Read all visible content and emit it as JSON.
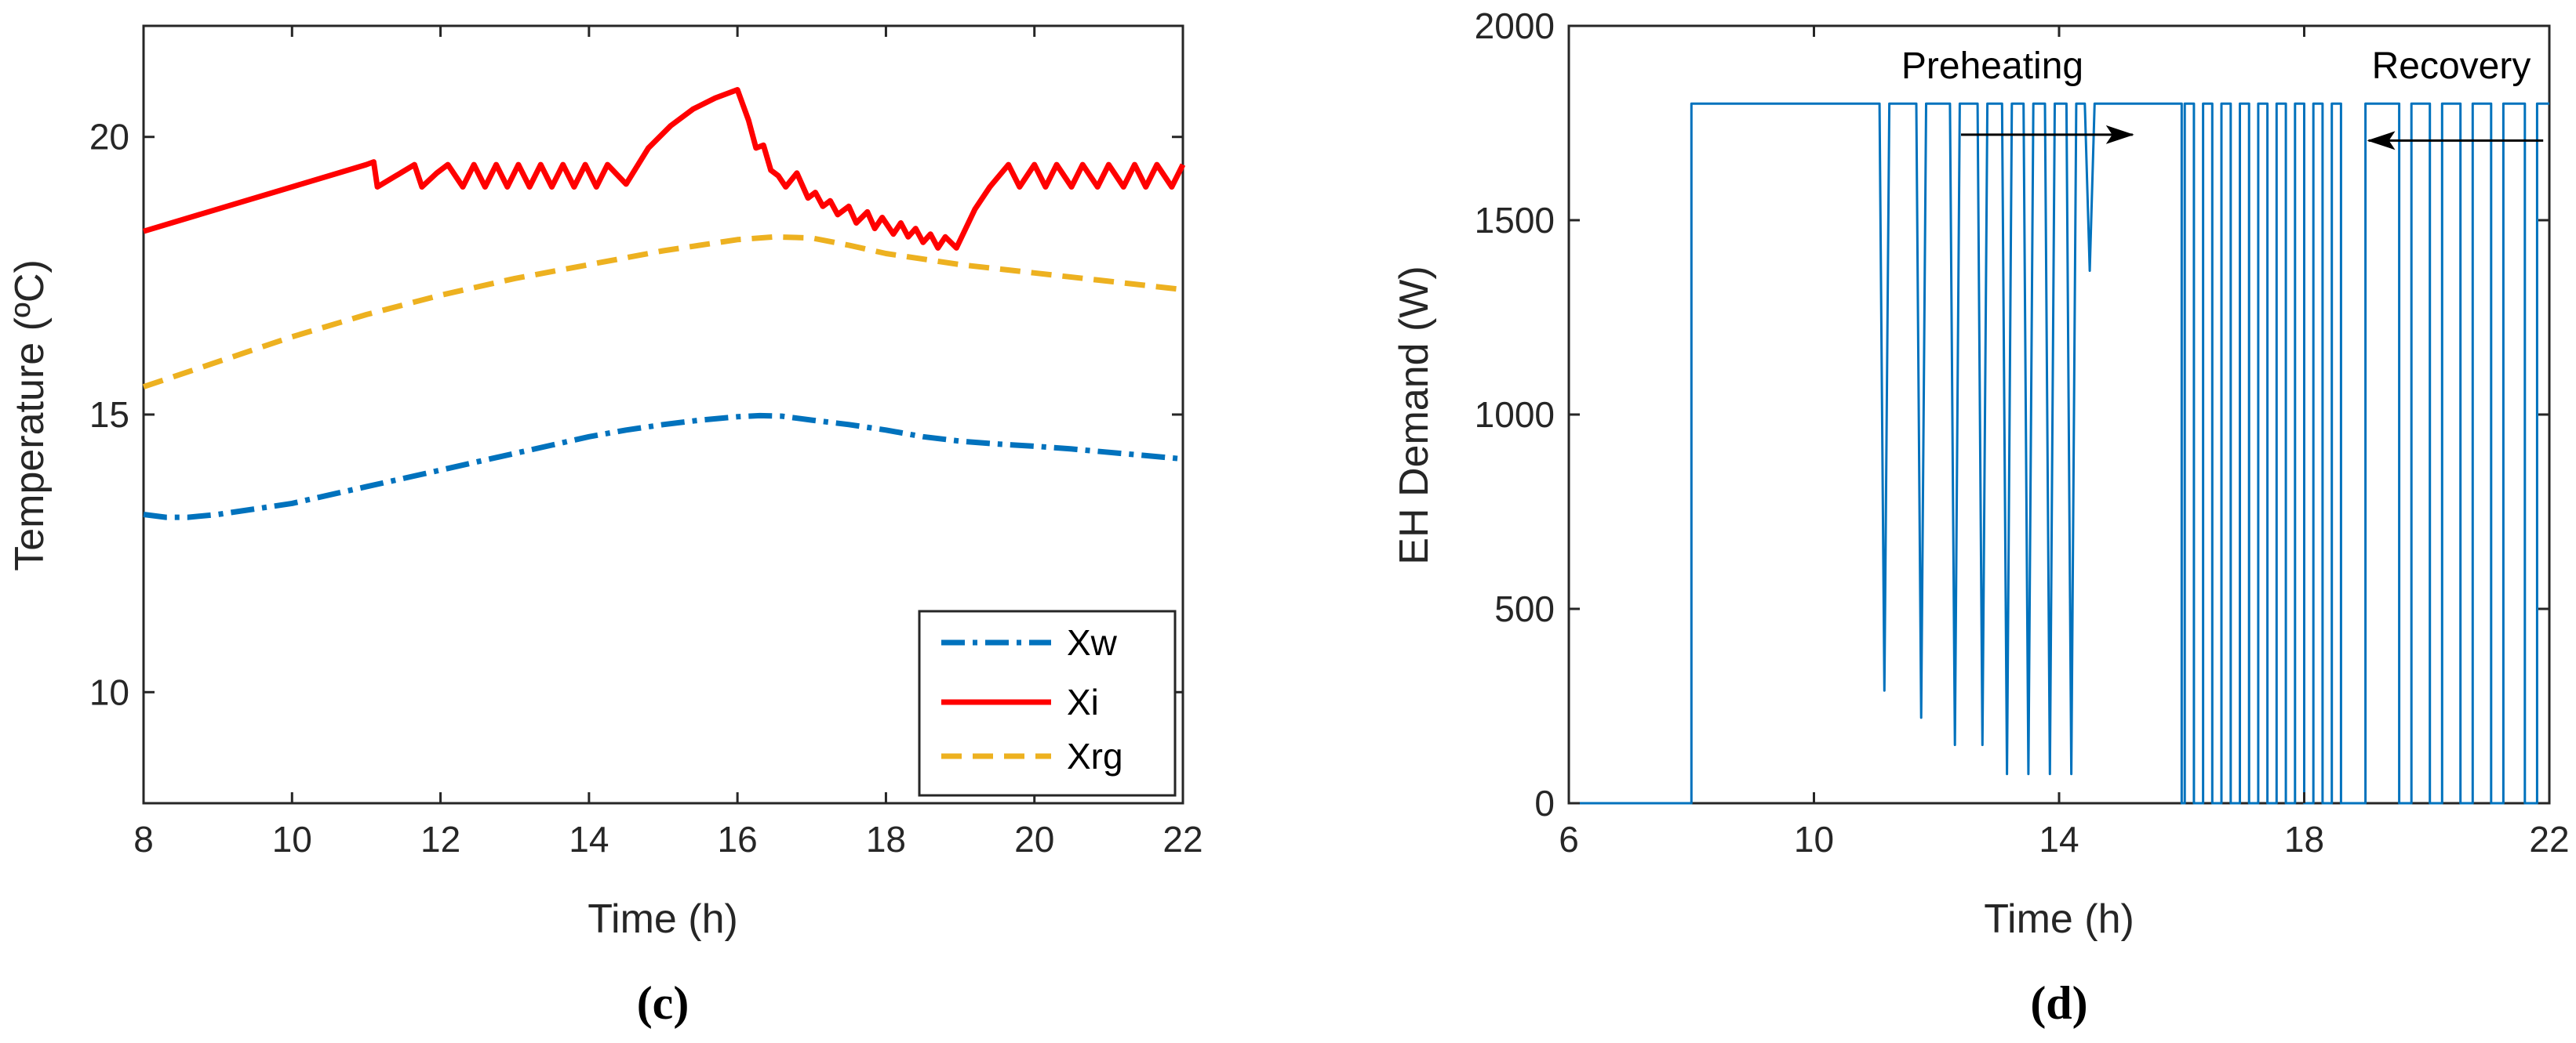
{
  "chart_data": [
    {
      "id": "c",
      "type": "line",
      "caption": "(c)",
      "xlabel": "Time (h)",
      "ylabel": "Temperature (ºC)",
      "xlim": [
        8,
        22
      ],
      "ylim": [
        8,
        22
      ],
      "xticks": [
        8,
        10,
        12,
        14,
        16,
        18,
        20,
        22
      ],
      "yticks": [
        10,
        15,
        20
      ],
      "grid": false,
      "legend_position": "bottom-right",
      "series": [
        {
          "name": "Xw",
          "style": "dash-dot",
          "color": "#0072BD",
          "x": [
            8,
            8.3,
            8.6,
            9,
            9.5,
            10,
            10.5,
            11,
            11.5,
            12,
            12.5,
            13,
            13.5,
            14,
            14.5,
            15,
            15.5,
            16,
            16.3,
            16.6,
            17,
            17.5,
            18,
            18.5,
            19,
            19.5,
            20,
            20.5,
            21,
            21.5,
            22
          ],
          "values": [
            13.2,
            13.15,
            13.15,
            13.2,
            13.3,
            13.4,
            13.55,
            13.7,
            13.85,
            14.0,
            14.15,
            14.3,
            14.45,
            14.6,
            14.72,
            14.82,
            14.9,
            14.96,
            14.98,
            14.97,
            14.9,
            14.82,
            14.72,
            14.6,
            14.52,
            14.47,
            14.43,
            14.38,
            14.32,
            14.26,
            14.2
          ]
        },
        {
          "name": "Xi",
          "style": "solid",
          "color": "#FF0000",
          "x": [
            8,
            9,
            10,
            11,
            11.1,
            11.15,
            11.4,
            11.65,
            11.75,
            11.95,
            12.1,
            12.3,
            12.45,
            12.6,
            12.75,
            12.9,
            13.05,
            13.2,
            13.35,
            13.5,
            13.65,
            13.8,
            13.95,
            14.1,
            14.25,
            14.5,
            14.8,
            15.1,
            15.4,
            15.7,
            16.0,
            16.15,
            16.25,
            16.35,
            16.45,
            16.55,
            16.65,
            16.8,
            16.95,
            17.05,
            17.15,
            17.25,
            17.35,
            17.5,
            17.6,
            17.75,
            17.85,
            17.95,
            18.1,
            18.2,
            18.3,
            18.4,
            18.5,
            18.6,
            18.7,
            18.8,
            18.95,
            19.2,
            19.4,
            19.65,
            19.8,
            20.0,
            20.15,
            20.3,
            20.5,
            20.65,
            20.85,
            21.0,
            21.2,
            21.35,
            21.5,
            21.65,
            21.85,
            22
          ],
          "values": [
            18.3,
            18.7,
            19.1,
            19.5,
            19.55,
            19.1,
            19.3,
            19.5,
            19.1,
            19.35,
            19.5,
            19.1,
            19.5,
            19.1,
            19.5,
            19.1,
            19.5,
            19.1,
            19.5,
            19.1,
            19.5,
            19.1,
            19.5,
            19.1,
            19.5,
            19.15,
            19.8,
            20.2,
            20.5,
            20.7,
            20.85,
            20.3,
            19.8,
            19.85,
            19.4,
            19.3,
            19.1,
            19.35,
            18.9,
            19.0,
            18.75,
            18.85,
            18.6,
            18.75,
            18.45,
            18.65,
            18.35,
            18.55,
            18.25,
            18.45,
            18.2,
            18.35,
            18.1,
            18.25,
            18.0,
            18.2,
            18.0,
            18.7,
            19.1,
            19.5,
            19.1,
            19.5,
            19.1,
            19.5,
            19.1,
            19.5,
            19.1,
            19.5,
            19.1,
            19.5,
            19.1,
            19.5,
            19.1,
            19.5
          ]
        },
        {
          "name": "Xrg",
          "style": "dashed",
          "color": "#EDB120",
          "x": [
            8,
            9,
            10,
            11,
            12,
            13,
            14,
            15,
            16,
            16.5,
            17,
            17.5,
            18,
            19,
            20,
            21,
            22
          ],
          "values": [
            15.5,
            15.95,
            16.4,
            16.8,
            17.15,
            17.45,
            17.7,
            17.95,
            18.15,
            18.2,
            18.18,
            18.05,
            17.9,
            17.7,
            17.55,
            17.4,
            17.25
          ]
        }
      ]
    },
    {
      "id": "d",
      "type": "line",
      "caption": "(d)",
      "xlabel": "Time (h)",
      "ylabel": "EH Demand (W)",
      "xlim": [
        6,
        22
      ],
      "ylim": [
        0,
        2000
      ],
      "xticks": [
        6,
        10,
        14,
        18,
        22
      ],
      "yticks": [
        0,
        500,
        1000,
        1500,
        2000
      ],
      "grid": false,
      "series": [
        {
          "name": "EH Demand",
          "style": "solid",
          "color": "#0072BD",
          "levels": {
            "on": 1800,
            "off": 0
          },
          "on_from": 8,
          "preheat_dips": [
            {
              "x": 11.15,
              "min": 290
            },
            {
              "x": 11.75,
              "min": 220
            },
            {
              "x": 12.3,
              "min": 150
            },
            {
              "x": 12.75,
              "min": 150
            },
            {
              "x": 13.15,
              "min": 75
            },
            {
              "x": 13.5,
              "min": 75
            },
            {
              "x": 13.85,
              "min": 75
            },
            {
              "x": 14.2,
              "min": 75
            },
            {
              "x": 14.5,
              "min": 1370
            }
          ],
          "recovery_gaps": [
            {
              "start": 19.55,
              "end": 19.75
            },
            {
              "start": 20.05,
              "end": 20.25
            },
            {
              "start": 20.55,
              "end": 20.75
            },
            {
              "start": 21.05,
              "end": 21.25
            },
            {
              "start": 21.6,
              "end": 21.8
            }
          ]
        }
      ],
      "annotations": [
        {
          "text": "Preheating",
          "arrow_from": [
            12.4,
            1720
          ],
          "arrow_to": [
            15.2,
            1720
          ]
        },
        {
          "text": "Recovery",
          "arrow_from": [
            21.9,
            1705
          ],
          "arrow_to": [
            19.05,
            1705
          ]
        }
      ]
    }
  ]
}
